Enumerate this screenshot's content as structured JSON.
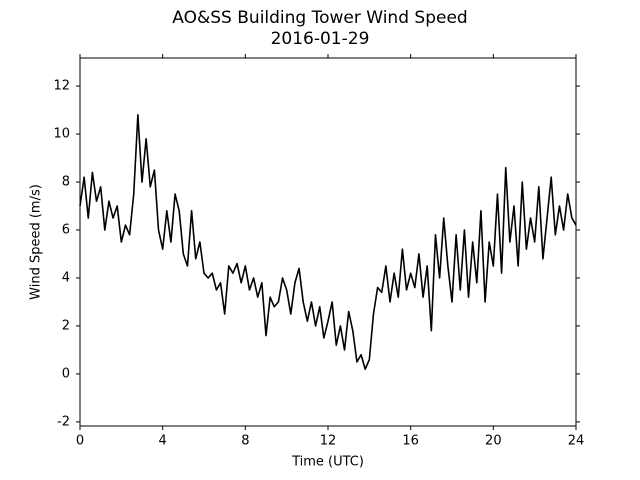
{
  "chart_data": {
    "type": "line",
    "title": "AO&SS Building Tower Wind Speed",
    "subtitle": "2016-01-29",
    "x_label": "Time (UTC)",
    "y_label": "Wind Speed (m/s)",
    "x": [
      0,
      0.2,
      0.4,
      0.6,
      0.8,
      1,
      1.2,
      1.4,
      1.6,
      1.8,
      2,
      2.2,
      2.4,
      2.6,
      2.8,
      3,
      3.2,
      3.4,
      3.6,
      3.8,
      4,
      4.2,
      4.4,
      4.6,
      4.8,
      5,
      5.2,
      5.4,
      5.6,
      5.8,
      6,
      6.2,
      6.4,
      6.6,
      6.8,
      7,
      7.2,
      7.4,
      7.6,
      7.8,
      8,
      8.2,
      8.4,
      8.6,
      8.8,
      9,
      9.2,
      9.4,
      9.6,
      9.8,
      10,
      10.2,
      10.4,
      10.6,
      10.8,
      11,
      11.2,
      11.4,
      11.6,
      11.8,
      12,
      12.2,
      12.4,
      12.6,
      12.8,
      13,
      13.2,
      13.4,
      13.6,
      13.8,
      14,
      14.2,
      14.4,
      14.6,
      14.8,
      15,
      15.2,
      15.4,
      15.6,
      15.8,
      16,
      16.2,
      16.4,
      16.6,
      16.8,
      17,
      17.2,
      17.4,
      17.6,
      17.8,
      18,
      18.2,
      18.4,
      18.6,
      18.8,
      19,
      19.2,
      19.4,
      19.6,
      19.8,
      20,
      20.2,
      20.4,
      20.6,
      20.8,
      21,
      21.2,
      21.4,
      21.6,
      21.8,
      22,
      22.2,
      22.4,
      22.6,
      22.8,
      23,
      23.2,
      23.4,
      23.6,
      23.8,
      24
    ],
    "series": [
      {
        "name": "Wind Speed",
        "color": "#000000",
        "values": [
          7.0,
          8.2,
          6.5,
          8.4,
          7.2,
          7.8,
          6.0,
          7.2,
          6.5,
          7.0,
          5.5,
          6.2,
          5.8,
          7.5,
          10.8,
          8.0,
          9.8,
          7.8,
          8.5,
          6.0,
          5.2,
          6.8,
          5.5,
          7.5,
          6.8,
          5.0,
          4.5,
          6.8,
          4.8,
          5.5,
          4.2,
          4.0,
          4.2,
          3.5,
          3.8,
          2.5,
          4.5,
          4.2,
          4.6,
          3.8,
          4.5,
          3.5,
          4.0,
          3.2,
          3.8,
          1.6,
          3.2,
          2.8,
          3.0,
          4.0,
          3.5,
          2.5,
          3.8,
          4.4,
          3.0,
          2.2,
          3.0,
          2.0,
          2.8,
          1.5,
          2.2,
          3.0,
          1.2,
          2.0,
          1.0,
          2.6,
          1.8,
          0.5,
          0.8,
          0.2,
          0.6,
          2.5,
          3.6,
          3.4,
          4.5,
          3.0,
          4.2,
          3.2,
          5.2,
          3.5,
          4.2,
          3.6,
          5.0,
          3.2,
          4.5,
          1.8,
          5.8,
          4.0,
          6.5,
          4.5,
          3.0,
          5.8,
          3.5,
          6.0,
          3.2,
          5.5,
          3.8,
          6.8,
          3.0,
          5.5,
          4.5,
          7.5,
          4.2,
          8.6,
          5.5,
          7.0,
          4.5,
          8.0,
          5.2,
          6.5,
          5.5,
          7.8,
          4.8,
          6.5,
          8.2,
          5.8,
          7.0,
          6.0,
          7.5,
          6.5,
          6.2
        ]
      }
    ],
    "xlim": [
      0,
      24
    ],
    "xticks": [
      0,
      4,
      8,
      12,
      16,
      20,
      24
    ],
    "ylim": [
      -2.17,
      13.17
    ],
    "yticks": [
      -2,
      0,
      2,
      4,
      6,
      8,
      10,
      12
    ],
    "grid": false
  }
}
